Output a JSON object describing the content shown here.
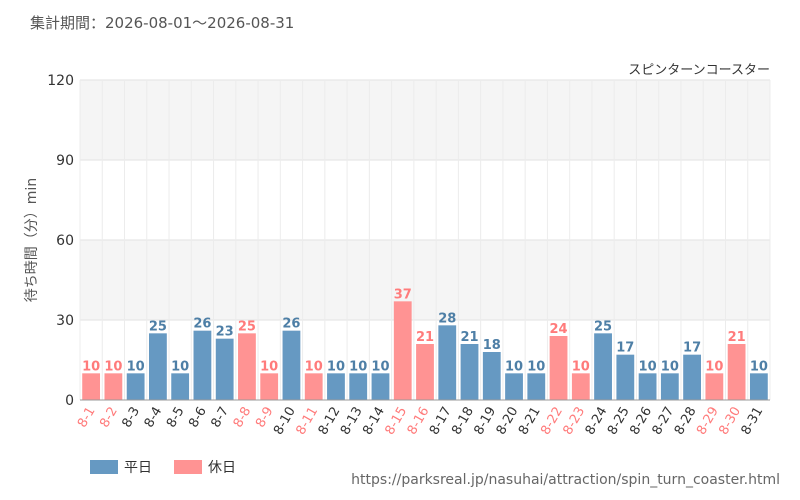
{
  "header": {
    "period": "集計期間：2026-08-01～2026-08-31"
  },
  "colors": {
    "weekday": "#6699c2",
    "holiday": "#ff9393",
    "weekday_text": "#4e7fa6",
    "holiday_text": "#ff7b7b"
  },
  "legend": {
    "weekday_label": "平日",
    "holiday_label": "休日"
  },
  "source": {
    "url": "https://parksreal.jp/nasuhai/attraction/spin_turn_coaster.html"
  },
  "chart_data": {
    "type": "bar",
    "title": "スピンターンコースター",
    "ylabel": "待ち時間（分）min",
    "xlabel": "",
    "ylim": [
      0,
      120
    ],
    "yticks": [
      0,
      30,
      60,
      90,
      120
    ],
    "grid": true,
    "legend_position": "bottom-left",
    "categories": [
      "8-1",
      "8-2",
      "8-3",
      "8-4",
      "8-5",
      "8-6",
      "8-7",
      "8-8",
      "8-9",
      "8-10",
      "8-11",
      "8-12",
      "8-13",
      "8-14",
      "8-15",
      "8-16",
      "8-17",
      "8-18",
      "8-19",
      "8-20",
      "8-21",
      "8-22",
      "8-23",
      "8-24",
      "8-25",
      "8-26",
      "8-27",
      "8-28",
      "8-29",
      "8-30",
      "8-31"
    ],
    "values": [
      10,
      10,
      10,
      25,
      10,
      26,
      23,
      25,
      10,
      26,
      10,
      10,
      10,
      10,
      37,
      21,
      28,
      21,
      18,
      10,
      10,
      24,
      10,
      25,
      17,
      10,
      10,
      17,
      10,
      21,
      10
    ],
    "day_type": [
      "holiday",
      "holiday",
      "weekday",
      "weekday",
      "weekday",
      "weekday",
      "weekday",
      "holiday",
      "holiday",
      "weekday",
      "holiday",
      "weekday",
      "weekday",
      "weekday",
      "holiday",
      "holiday",
      "weekday",
      "weekday",
      "weekday",
      "weekday",
      "weekday",
      "holiday",
      "holiday",
      "weekday",
      "weekday",
      "weekday",
      "weekday",
      "weekday",
      "holiday",
      "holiday",
      "weekday"
    ]
  }
}
